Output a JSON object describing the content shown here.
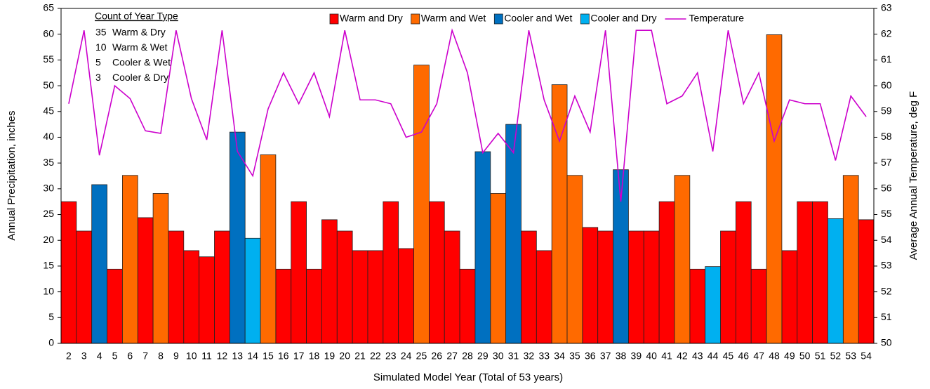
{
  "chart_data": {
    "type": "bar",
    "x_label": "Simulated Model Year (Total of 53 years)",
    "y_label": "Annual Precipitation, inches",
    "y2_label": "Average Annual Temperature, deg F",
    "categories": [
      2,
      3,
      4,
      5,
      6,
      7,
      8,
      9,
      10,
      11,
      12,
      13,
      14,
      15,
      16,
      17,
      18,
      19,
      20,
      21,
      22,
      23,
      24,
      25,
      26,
      27,
      28,
      29,
      30,
      31,
      32,
      33,
      34,
      35,
      36,
      37,
      38,
      39,
      40,
      41,
      42,
      43,
      44,
      45,
      46,
      47,
      48,
      49,
      50,
      51,
      52,
      53,
      54
    ],
    "ylim": [
      0,
      65
    ],
    "yticks": [
      0,
      5,
      10,
      15,
      20,
      25,
      30,
      35,
      40,
      45,
      50,
      55,
      60,
      65
    ],
    "y2lim": [
      50,
      63
    ],
    "y2ticks": [
      50,
      51,
      52,
      53,
      54,
      55,
      56,
      57,
      58,
      59,
      60,
      61,
      62,
      63
    ],
    "legend": "top-right",
    "series": [
      {
        "name": "Warm and Dry",
        "color": "#ff0000",
        "values": [
          27.5,
          21.8,
          null,
          14.4,
          null,
          24.4,
          null,
          21.8,
          18.0,
          16.8,
          21.8,
          null,
          null,
          null,
          14.4,
          27.5,
          14.4,
          24.0,
          21.8,
          18.0,
          18.0,
          27.5,
          18.4,
          null,
          27.5,
          21.8,
          14.4,
          null,
          null,
          null,
          21.8,
          18.0,
          null,
          null,
          22.5,
          21.8,
          null,
          21.8,
          21.8,
          27.5,
          null,
          14.4,
          null,
          21.8,
          27.5,
          14.4,
          null,
          18.0,
          27.5,
          27.5,
          null,
          null,
          24.0
        ]
      },
      {
        "name": "Warm and Wet",
        "color": "#ff6a00",
        "values": [
          null,
          null,
          null,
          null,
          32.6,
          null,
          29.1,
          null,
          null,
          null,
          null,
          null,
          null,
          36.6,
          null,
          null,
          null,
          null,
          null,
          null,
          null,
          null,
          null,
          54.0,
          null,
          null,
          null,
          null,
          29.1,
          null,
          null,
          null,
          50.2,
          32.6,
          null,
          null,
          null,
          null,
          null,
          null,
          32.6,
          null,
          null,
          null,
          null,
          null,
          59.9,
          null,
          null,
          null,
          null,
          32.6,
          null
        ]
      },
      {
        "name": "Cooler and Wet",
        "color": "#0070c0",
        "values": [
          null,
          null,
          30.8,
          null,
          null,
          null,
          null,
          null,
          null,
          null,
          null,
          41.0,
          null,
          null,
          null,
          null,
          null,
          null,
          null,
          null,
          null,
          null,
          null,
          null,
          null,
          null,
          null,
          37.2,
          null,
          42.5,
          null,
          null,
          null,
          null,
          null,
          null,
          33.7,
          null,
          null,
          null,
          null,
          null,
          null,
          null,
          null,
          null,
          null,
          null,
          null,
          null,
          null,
          null,
          null
        ]
      },
      {
        "name": "Cooler and Dry",
        "color": "#00b0f0",
        "values": [
          null,
          null,
          null,
          null,
          null,
          null,
          null,
          null,
          null,
          null,
          null,
          null,
          20.4,
          null,
          null,
          null,
          null,
          null,
          null,
          null,
          null,
          null,
          null,
          null,
          null,
          null,
          null,
          null,
          null,
          null,
          null,
          null,
          null,
          null,
          null,
          null,
          null,
          null,
          null,
          null,
          null,
          null,
          14.9,
          null,
          null,
          null,
          null,
          null,
          null,
          null,
          24.2,
          null,
          null
        ]
      },
      {
        "name": "Temperature",
        "color": "#cc00cc",
        "type": "line",
        "axis": "y2",
        "values": [
          59.3,
          62.15,
          57.3,
          60.0,
          59.5,
          58.25,
          58.15,
          62.15,
          59.5,
          57.9,
          62.15,
          57.45,
          56.5,
          59.1,
          60.5,
          59.3,
          60.5,
          58.8,
          62.15,
          59.45,
          59.45,
          59.3,
          58.0,
          58.2,
          59.3,
          62.15,
          60.5,
          57.4,
          58.15,
          57.4,
          62.15,
          59.45,
          57.85,
          59.6,
          58.2,
          62.15,
          55.5,
          62.15,
          62.15,
          59.3,
          59.6,
          60.5,
          57.45,
          62.15,
          59.3,
          60.5,
          57.85,
          59.45,
          59.3,
          59.3,
          57.1,
          59.6,
          58.8
        ]
      }
    ],
    "annotation": {
      "title": "Count of Year Type",
      "items": [
        {
          "count": 35,
          "label": "Warm & Dry"
        },
        {
          "count": 10,
          "label": "Warm & Wet"
        },
        {
          "count": 5,
          "label": "Cooler & Wet"
        },
        {
          "count": 3,
          "label": "Cooler & Dry"
        }
      ]
    }
  }
}
